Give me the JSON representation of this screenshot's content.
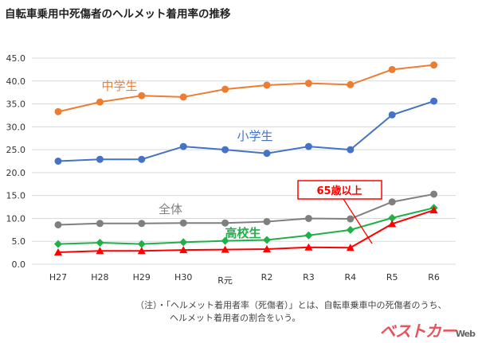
{
  "title": "自転車乗用中死傷者のヘルメット着用率の推移",
  "chart_data": {
    "type": "line",
    "title": "自転車乗用中死傷者のヘルメット着用率の推移",
    "xlabel": "",
    "ylabel": "",
    "categories": [
      "H27",
      "H28",
      "H29",
      "H30",
      "R元",
      "R2",
      "R3",
      "R4",
      "R5",
      "R6"
    ],
    "ylim": [
      0,
      45
    ],
    "yticks": [
      "0.0",
      "5.0",
      "10.0",
      "15.0",
      "20.0",
      "25.0",
      "30.0",
      "35.0",
      "40.0",
      "45.0"
    ],
    "grid": true,
    "series": [
      {
        "name": "中学生",
        "color": "#ed7d31",
        "marker": "circle",
        "values": [
          33.3,
          35.4,
          36.8,
          36.5,
          38.2,
          39.1,
          39.5,
          39.2,
          42.5,
          43.5
        ]
      },
      {
        "name": "小学生",
        "color": "#4472c4",
        "marker": "circle",
        "values": [
          22.5,
          22.9,
          22.9,
          25.7,
          25.0,
          24.2,
          25.7,
          25.0,
          32.6,
          35.6
        ]
      },
      {
        "name": "全体",
        "color": "#7f7f7f",
        "marker": "circle",
        "values": [
          8.6,
          8.9,
          8.9,
          9.0,
          9.0,
          9.3,
          10.0,
          9.9,
          13.6,
          15.3
        ]
      },
      {
        "name": "高校生",
        "color": "#1fb04a",
        "marker": "diamond",
        "values": [
          4.4,
          4.7,
          4.4,
          4.8,
          5.1,
          5.3,
          6.3,
          7.5,
          10.1,
          12.3
        ]
      },
      {
        "name": "65歳以上",
        "color": "#ff0000",
        "marker": "triangle",
        "values": [
          2.6,
          2.9,
          2.9,
          3.1,
          3.2,
          3.3,
          3.7,
          3.6,
          8.8,
          11.8
        ]
      }
    ]
  },
  "note": {
    "line1": "（注）・「ヘルメット着用者率（死傷者）」とは、自転車乗車中の死傷者のうち、",
    "line2": "ヘルメット着用者の割合をいう。"
  },
  "watermark": {
    "main": "ベストカー",
    "sub": "Web"
  }
}
